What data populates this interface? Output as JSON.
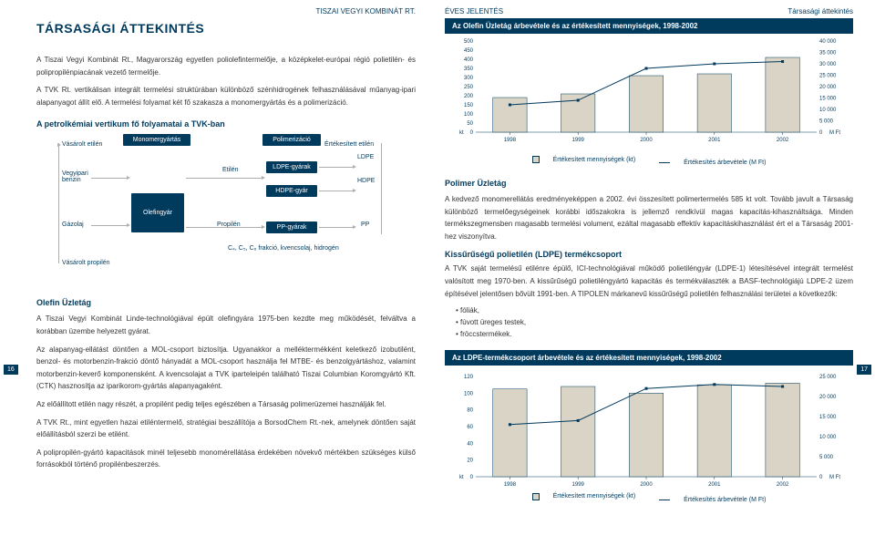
{
  "header": {
    "company": "TISZAI VEGYI KOMBINÁT RT.",
    "report": "ÉVES JELENTÉS",
    "section": "Társasági áttekintés"
  },
  "left": {
    "title": "TÁRSASÁGI ÁTTEKINTÉS",
    "para1": "A Tiszai Vegyi Kombinát Rt., Magyarország egyetlen poliolefintermelője, a középkelet-európai régió polietilén- és polipropilénpiacának vezető termelője.",
    "para2": "A TVK Rt. vertikálisan integrált termelési struktúrában különböző szénhidrogének felhasználásával műanyag-ipari alapanyagot állít elő. A termelési folyamat két fő szakasza a monomergyártás és a polimerizáció.",
    "flow_title": "A petrolkémiai vertikum fő folyamatai a TVK-ban",
    "flow": {
      "monomer": "Monomergyártás",
      "polimer": "Polimerizáció",
      "olefin": "Olefingyár",
      "ldpe": "LDPE-gyárak",
      "hdpe": "HDPE-gyár",
      "pp": "PP-gyárak",
      "input1": "Vásárolt etilén",
      "input2": "Vegyipari\nbenzin",
      "input3": "Gázolaj",
      "input4": "Vásárolt propilén",
      "etilen": "Etilén",
      "propilen": "Propilén",
      "ert_etilen": "Értékesített etilén",
      "out_ldpe": "LDPE",
      "out_hdpe": "HDPE",
      "out_pp": "PP",
      "bottom": "C₄, C₅, C₆ frakció, kvencsolaj, hidrogén"
    },
    "sec_olefin": "Olefin Üzletág",
    "para3": "A Tiszai Vegyi Kombinát Linde-technológiával épült olefingyára 1975-ben kezdte meg működését, felváltva a korábban üzembe helyezett gyárat.",
    "para4": "Az alapanyag-ellátást döntően a MOL-csoport biztosítja. Ugyanakkor a melléktermékként keletkező izobutilént, benzol- és motorbenzin-frakció döntő hányadát a MOL-csoport használja fel MTBE- és benzolgyártáshoz, valamint motorbenzin-keverő komponensként. A kvencsolajat a TVK iparteleipén található Tiszai Columbian Koromgyártó Kft. (CTK) hasznosítja az iparikorom-gyártás alapanyagaként.",
    "para5": "Az előállított etilén nagy részét, a propilént pedig teljes egészében a Társaság polimerüzemei használják fel.",
    "para6": "A TVK Rt., mint egyetlen hazai etiléntermelő, stratégiai beszállítója a BorsodChem Rt.-nek, amelynek döntően saját előállításból szerzi be etilént.",
    "para7": "A polipropilén-gyártó kapacitások minél teljesebb monomérellátása érdekében növekvő mértékben szükséges külső forrásokból történő propilénbeszerzés.",
    "page_num": "16"
  },
  "right": {
    "chart1": {
      "title": "Az Olefin Üzletág árbevétele és az értékesített mennyiségek, 1998-2002",
      "y_left_max": 500,
      "y_left_step": 50,
      "y_right_max": 40000,
      "y_right_step": 5000,
      "y_left_ticks": [
        "500",
        "450",
        "400",
        "350",
        "300",
        "250",
        "200",
        "150",
        "100",
        "50",
        "0"
      ],
      "y_right_ticks": [
        "40 000",
        "35 000",
        "30 000",
        "25 000",
        "20 000",
        "15 000",
        "10 000",
        "5 000",
        "0"
      ],
      "x_labels": [
        "1998",
        "1999",
        "2000",
        "2001",
        "2002"
      ],
      "bars": [
        190,
        210,
        310,
        320,
        410
      ],
      "line": [
        12000,
        14000,
        28000,
        30000,
        31000
      ],
      "bar_color": "#d9d4c5",
      "bar_border": "#003a5d",
      "line_color": "#003a5d",
      "bg": "#ffffff",
      "y_left_unit": "kt",
      "y_right_unit": "M Ft"
    },
    "legend1_a": "Értékesített mennyiségek (kt)",
    "legend1_b": "Értékesítés árbevétele (M Ft)",
    "sec_polimer": "Polimer Üzletág",
    "para_r1": "A kedvező monomerellátás eredményeképpen a 2002. évi összesített polimertermelés 585 kt volt. Tovább javult a Társaság különböző termelőegységeinek korábbi időszakokra is jellemző rendkívül magas kapacitás-kihasználtsága. Minden termékszegmensben magasabb termelési volument, ezáltal magasabb effektív kapacitáskihasználást ért el a Társaság 2001-hez viszonyítva.",
    "sec_ldpe": "Kissűrűségű polietilén (LDPE) termékcsoport",
    "para_r2": "A TVK saját termelésű etilénre épülő, ICI-technológiával működő polietiléngyár (LDPE-1) létesítésével integrált termelést valósított meg 1970-ben. A kissűrűségű polietiléngyártó kapacitás és termékválaszték a BASF-technológiájú LDPE-2 üzem építésével jelentősen bővült 1991-ben. A TIPOLEN márkanevű kissűrűségű polietilén felhasználási területei a következők:",
    "bullets": [
      "fóliák,",
      "fúvott üreges testek,",
      "fröccstermékek."
    ],
    "chart2": {
      "title": "Az LDPE-termékcsoport árbevétele és az értékesített mennyiségek, 1998-2002",
      "y_left_max": 120,
      "y_left_step": 20,
      "y_right_max": 25000,
      "y_right_step": 5000,
      "y_left_ticks": [
        "120",
        "100",
        "80",
        "60",
        "40",
        "20",
        "0"
      ],
      "y_right_ticks": [
        "25 000",
        "20 000",
        "15 000",
        "10 000",
        "5 000",
        "0"
      ],
      "x_labels": [
        "1998",
        "1999",
        "2000",
        "2001",
        "2002"
      ],
      "bars": [
        105,
        108,
        100,
        110,
        112
      ],
      "line": [
        13000,
        14000,
        22000,
        23000,
        22500
      ],
      "bar_color": "#d9d4c5",
      "bar_border": "#003a5d",
      "line_color": "#003a5d",
      "bg": "#ffffff",
      "y_left_unit": "kt",
      "y_right_unit": "M Ft"
    },
    "legend2_a": "Értékesített mennyiségek (kt)",
    "legend2_b": "Értékesítés árbevétele (M Ft)",
    "page_num": "17"
  }
}
